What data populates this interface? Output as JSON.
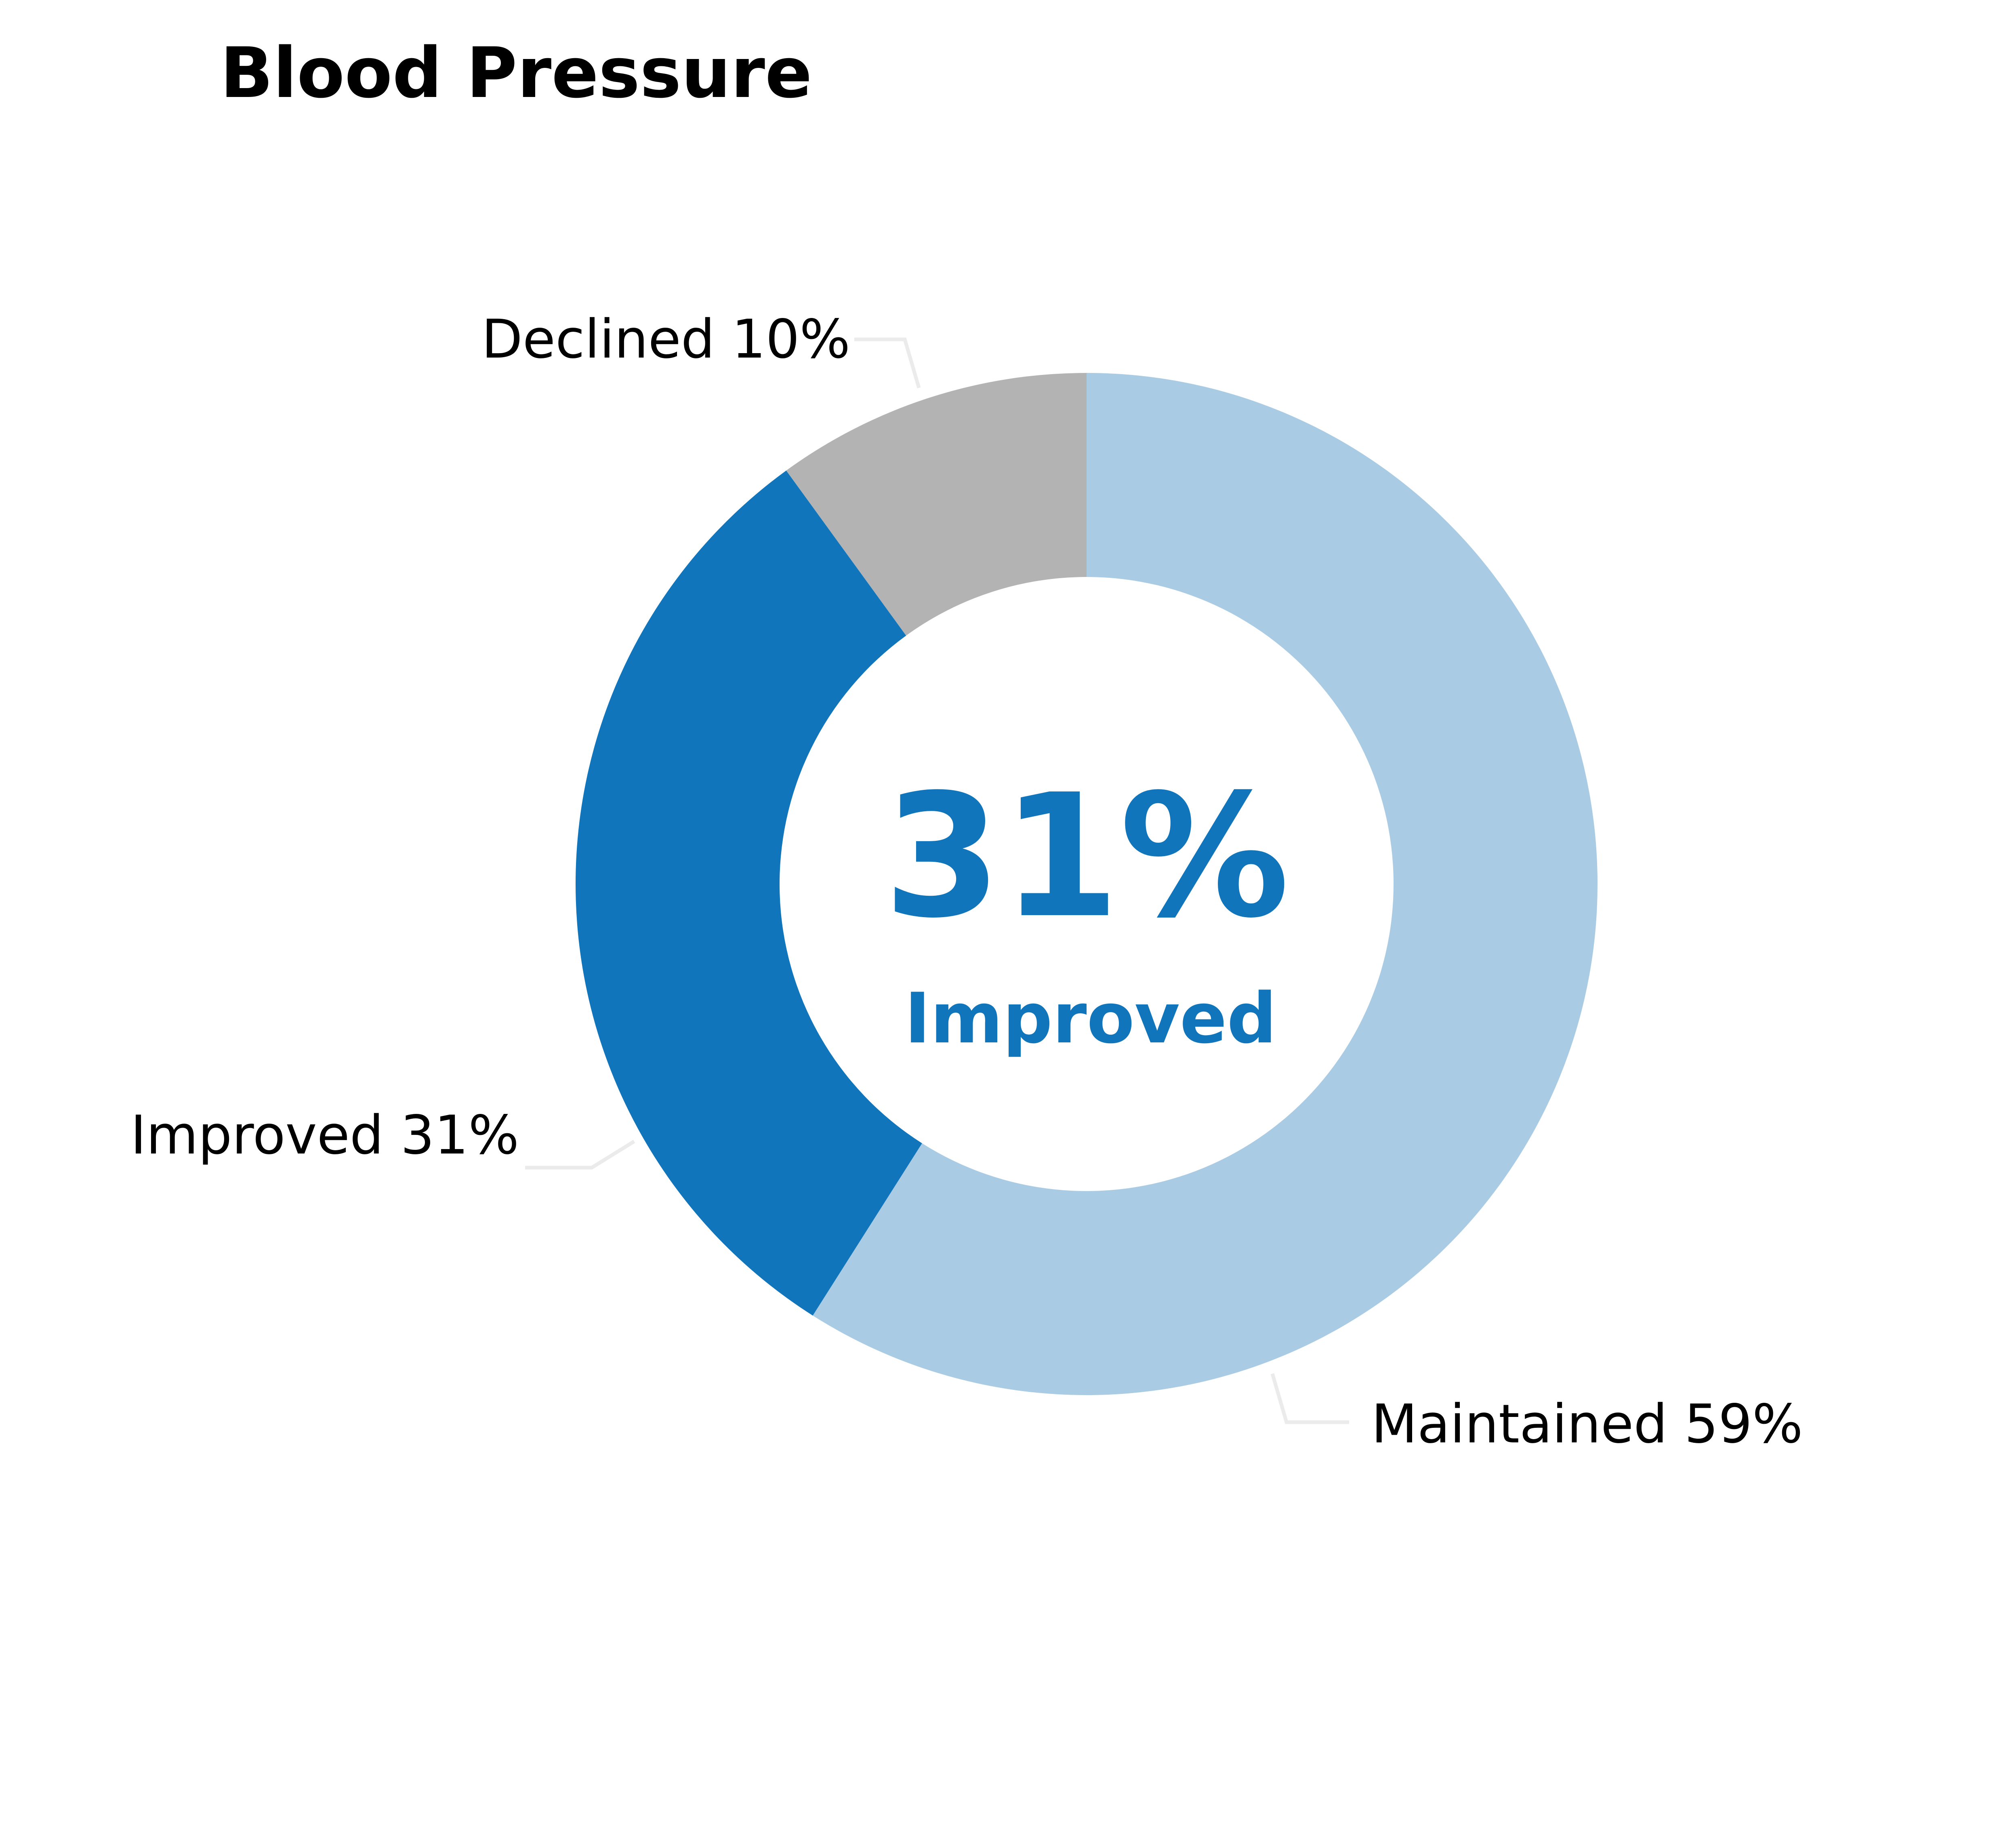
{
  "chart_data": {
    "type": "pie",
    "title": "Blood Pressure",
    "donut": true,
    "categories": [
      "Maintained",
      "Improved",
      "Declined"
    ],
    "values": [
      59,
      31,
      10
    ],
    "unit": "%",
    "labels": [
      "Maintained 59%",
      "Improved 31%",
      "Declined 10%"
    ],
    "colors": [
      "#a9cbe3",
      "#1075bb",
      "#b3b3b3"
    ],
    "center": {
      "value": "31%",
      "label": "Improved",
      "color": "#1075bb"
    },
    "legend": "none",
    "grid": false
  }
}
